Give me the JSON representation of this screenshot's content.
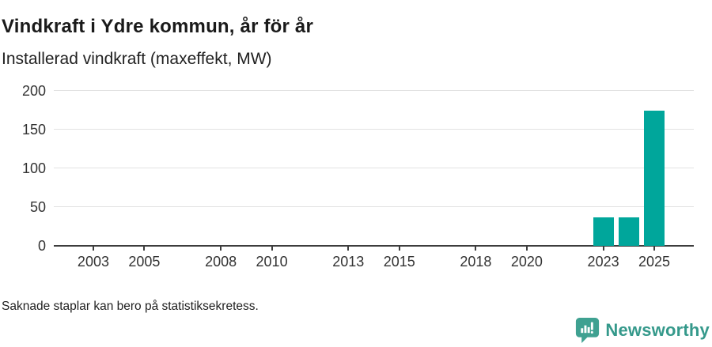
{
  "header": {
    "title": "Vindkraft i Ydre kommun, år för år",
    "subtitle": "Installerad vindkraft (maxeffekt, MW)"
  },
  "footnote": "Saknade staplar kan bero på statistiksekretess.",
  "logo": {
    "text": "Newsworthy",
    "icon": "newsworthy-speech-bubble-bar-chart-icon"
  },
  "colors": {
    "bar": "#00a69b",
    "grid": "#e2e2e2",
    "axis": "#3d3d3d",
    "text": "#1a1a1a",
    "tick_label": "#333333",
    "logo": "#35998b",
    "background": "#ffffff"
  },
  "chart_data": {
    "type": "bar",
    "title": "Vindkraft i Ydre kommun, år för år",
    "subtitle": "Installerad vindkraft (maxeffekt, MW)",
    "unit": "MW",
    "x": [
      2023,
      2024,
      2025
    ],
    "values": [
      37,
      37,
      175
    ],
    "x_ticks": [
      2003,
      2005,
      2008,
      2010,
      2013,
      2015,
      2018,
      2020,
      2023,
      2025
    ],
    "x_range": [
      2001.45,
      2026.55
    ],
    "y_ticks": [
      0,
      50,
      100,
      150,
      200
    ],
    "ylim": [
      0,
      200
    ],
    "grid": "horizontal-only",
    "legend": "none",
    "xlabel": "",
    "ylabel": "",
    "bar_color": "#00a69b",
    "note": "No bars shown for years 2001-2022 (missing data)"
  }
}
